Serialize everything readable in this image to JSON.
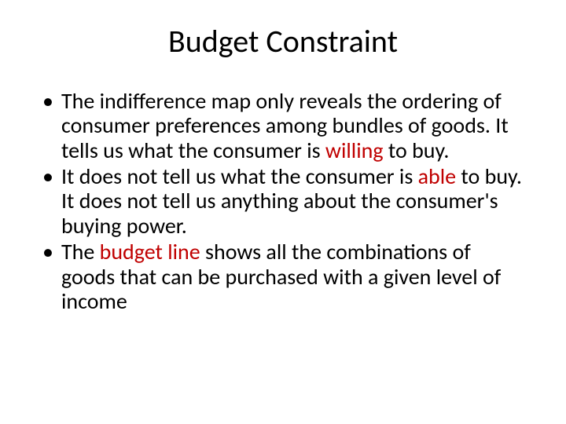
{
  "slide": {
    "title": "Budget Constraint",
    "title_fontsize": 40,
    "body_fontsize": 28,
    "text_color": "#000000",
    "emphasis_color": "#c00000",
    "background_color": "#ffffff",
    "bullets": [
      {
        "pre": "The indifference map only reveals the ordering of consumer preferences among bundles of goods. It tells us what the consumer is ",
        "emph": "willing",
        "post": " to buy."
      },
      {
        "pre": "It does not tell us what the consumer is ",
        "emph": "able",
        "post": " to buy. It does not tell us anything about the consumer's buying power."
      },
      {
        "pre": "The ",
        "emph": "budget line",
        "post": " shows all the combinations of goods that can be purchased with a given level of income"
      }
    ]
  }
}
